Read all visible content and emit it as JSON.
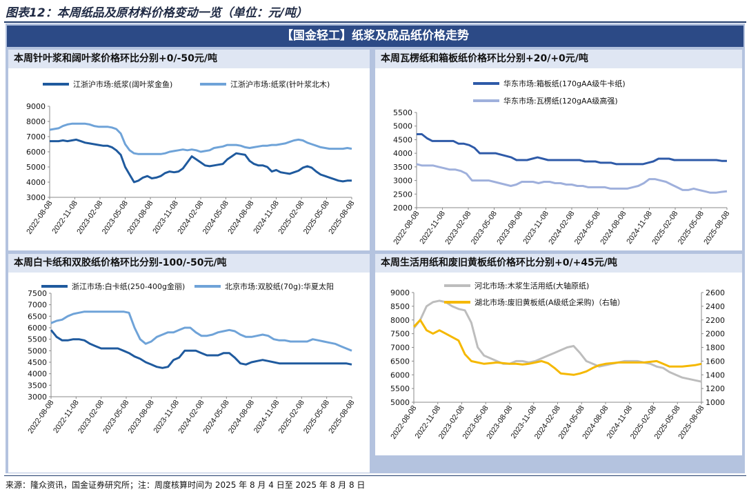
{
  "figure_title": "图表12：本周纸品及原材料价格变动一览（单位：元/吨）",
  "banner": "【国金轻工】纸浆及成品纸价格走势",
  "source_note": "来源：隆众资讯，国金证券研究所；注：周度核算时间为 2025 年 8 月 4 日至 2025 年 8 月 8 日",
  "chart_data": [
    {
      "id": "p1",
      "type": "line",
      "title": "本周针叶浆和阔叶浆价格环比分别+0/-50元/吨",
      "x_tick_labels": [
        "2022-08-08",
        "2022-11-08",
        "2023-02-08",
        "2023-05-08",
        "2023-08-08",
        "2023-11-08",
        "2024-02-08",
        "2024-05-08",
        "2024-08-08",
        "2024-11-08",
        "2025-02-08",
        "2025-05-08",
        "2025-08-08"
      ],
      "ylim": [
        3000,
        9000
      ],
      "yticks": [
        3000,
        4000,
        5000,
        6000,
        7000,
        8000,
        9000
      ],
      "series": [
        {
          "name": "江浙沪市场:纸浆(阔叶浆金鱼)",
          "color": "#1f5a9e",
          "width": 3,
          "values": [
            6700,
            6700,
            6700,
            6750,
            6700,
            6750,
            6800,
            6700,
            6600,
            6550,
            6500,
            6450,
            6400,
            6400,
            6300,
            6100,
            5800,
            5000,
            4500,
            4000,
            4100,
            4300,
            4400,
            4250,
            4300,
            4400,
            4600,
            4700,
            4650,
            4700,
            4900,
            5300,
            5700,
            5500,
            5300,
            5100,
            5050,
            5100,
            5150,
            5200,
            5500,
            5700,
            5900,
            5850,
            5800,
            5400,
            5200,
            5100,
            5100,
            5000,
            4700,
            4800,
            4650,
            4600,
            4550,
            4650,
            4750,
            4950,
            5050,
            4950,
            4700,
            4500,
            4400,
            4300,
            4200,
            4100,
            4050,
            4100,
            4100
          ]
        },
        {
          "name": "江浙沪市场:纸浆(针叶浆北木)",
          "color": "#6fa3d8",
          "width": 3,
          "values": [
            7450,
            7500,
            7550,
            7700,
            7800,
            7850,
            7850,
            7850,
            7850,
            7800,
            7700,
            7650,
            7650,
            7650,
            7600,
            7500,
            7200,
            6500,
            6100,
            5900,
            5850,
            5850,
            5850,
            5850,
            5850,
            5850,
            5900,
            6000,
            6050,
            6100,
            6150,
            6100,
            6150,
            6100,
            6000,
            6050,
            6100,
            6250,
            6300,
            6350,
            6450,
            6450,
            6450,
            6400,
            6300,
            6250,
            6300,
            6350,
            6400,
            6400,
            6450,
            6450,
            6500,
            6550,
            6650,
            6750,
            6800,
            6750,
            6600,
            6500,
            6400,
            6300,
            6250,
            6200,
            6200,
            6200,
            6200,
            6250,
            6200
          ]
        }
      ]
    },
    {
      "id": "p2",
      "type": "line",
      "title": "本周瓦楞纸和箱板纸价格环比分别+20/+0元/吨",
      "x_tick_labels": [
        "2022-08-08",
        "2022-11-08",
        "2023-02-08",
        "2023-05-08",
        "2023-08-08",
        "2023-11-08",
        "2024-02-08",
        "2024-05-08",
        "2024-08-08",
        "2024-11-08",
        "2025-02-08",
        "2025-05-08",
        "2025-08-08"
      ],
      "ylim": [
        2000,
        5500
      ],
      "yticks": [
        2000,
        2500,
        3000,
        3500,
        4000,
        4500,
        5000,
        5500
      ],
      "series": [
        {
          "name": "华东市场:箱板纸(170gAA级牛卡纸)",
          "color": "#2e5aa8",
          "width": 3,
          "values": [
            4700,
            4700,
            4550,
            4450,
            4450,
            4450,
            4450,
            4450,
            4350,
            4350,
            4300,
            4200,
            4000,
            4000,
            4000,
            4000,
            3950,
            3900,
            3850,
            3750,
            3750,
            3750,
            3800,
            3850,
            3800,
            3750,
            3750,
            3750,
            3750,
            3750,
            3750,
            3750,
            3700,
            3700,
            3700,
            3650,
            3650,
            3650,
            3600,
            3600,
            3600,
            3600,
            3600,
            3600,
            3650,
            3700,
            3800,
            3800,
            3800,
            3750,
            3750,
            3750,
            3750,
            3750,
            3750,
            3750,
            3750,
            3750,
            3720,
            3720
          ]
        },
        {
          "name": "华东市场:瓦楞纸(120gAA级高强)",
          "color": "#9fb0dc",
          "width": 3,
          "values": [
            3600,
            3550,
            3550,
            3550,
            3500,
            3450,
            3400,
            3400,
            3350,
            3250,
            3000,
            3000,
            3000,
            3000,
            2950,
            2900,
            2850,
            2800,
            2850,
            2950,
            2950,
            2950,
            2900,
            2950,
            2950,
            2900,
            2900,
            2850,
            2850,
            2800,
            2800,
            2750,
            2750,
            2750,
            2750,
            2700,
            2700,
            2700,
            2700,
            2750,
            2800,
            2900,
            3050,
            3050,
            3000,
            2950,
            2850,
            2750,
            2650,
            2650,
            2700,
            2650,
            2600,
            2550,
            2550,
            2580,
            2600
          ]
        }
      ]
    },
    {
      "id": "p3",
      "type": "line",
      "title": "本周白卡纸和双胶纸价格环比分别-100/-50元/吨",
      "x_tick_labels": [
        "2022-08-08",
        "2022-11-08",
        "2023-02-08",
        "2023-05-08",
        "2023-08-08",
        "2023-11-08",
        "2024-02-08",
        "2024-05-08",
        "2024-08-08",
        "2024-11-08",
        "2025-02-08",
        "2025-05-08",
        "2025-08-08"
      ],
      "ylim": [
        3000,
        7500
      ],
      "yticks": [
        3000,
        3500,
        4000,
        4500,
        5000,
        5500,
        6000,
        6500,
        7000,
        7500
      ],
      "series": [
        {
          "name": "浙江市场:白卡纸(250-400g金丽)",
          "color": "#1f5a9e",
          "width": 3,
          "values": [
            5900,
            5600,
            5450,
            5450,
            5500,
            5500,
            5450,
            5300,
            5200,
            5100,
            5100,
            5100,
            5100,
            5000,
            4900,
            4750,
            4650,
            4500,
            4400,
            4300,
            4250,
            4300,
            4600,
            4700,
            5000,
            5000,
            5000,
            4900,
            4800,
            4800,
            4800,
            4900,
            4900,
            4700,
            4450,
            4400,
            4500,
            4550,
            4600,
            4550,
            4500,
            4450,
            4450,
            4450,
            4450,
            4450,
            4450,
            4450,
            4450,
            4450,
            4450,
            4450,
            4450,
            4450,
            4400
          ]
        },
        {
          "name": "北京市场:双胶纸(70g):华夏太阳",
          "color": "#6fa3d8",
          "width": 3,
          "values": [
            6200,
            6300,
            6350,
            6500,
            6600,
            6650,
            6700,
            6700,
            6700,
            6700,
            6700,
            6700,
            6700,
            6700,
            6650,
            6000,
            5500,
            5300,
            5400,
            5600,
            5700,
            5800,
            5800,
            5900,
            6000,
            6000,
            5800,
            5650,
            5650,
            5700,
            5800,
            5850,
            5900,
            5850,
            5700,
            5600,
            5600,
            5650,
            5700,
            5650,
            5500,
            5450,
            5450,
            5400,
            5400,
            5400,
            5400,
            5500,
            5450,
            5400,
            5350,
            5300,
            5200,
            5100,
            5000
          ]
        }
      ]
    },
    {
      "id": "p4",
      "type": "line",
      "title": "本周生活用纸和废旧黄板纸价格环比分别+0/+45元/吨",
      "x_tick_labels": [
        "2022-08-08",
        "2022-11-08",
        "2023-02-08",
        "2023-05-08",
        "2023-08-08",
        "2023-11-08",
        "2024-02-08",
        "2024-05-08",
        "2024-08-08",
        "2024-11-08",
        "2025-02-08",
        "2025-05-08",
        "2025-08-08"
      ],
      "ylim": [
        5000,
        9000
      ],
      "yticks": [
        5000,
        5500,
        6000,
        6500,
        7000,
        7500,
        8000,
        8500,
        9000
      ],
      "y2lim": [
        1000,
        2600
      ],
      "y2ticks": [
        1000,
        1200,
        1400,
        1600,
        1800,
        2000,
        2200,
        2400,
        2600
      ],
      "series": [
        {
          "name": "河北市场:木浆生活用纸(大轴原纸)",
          "color": "#bdbdbd",
          "width": 3,
          "axis": "left",
          "values": [
            7700,
            8000,
            8500,
            8650,
            8700,
            8650,
            8500,
            8400,
            8350,
            7900,
            7000,
            6700,
            6600,
            6500,
            6400,
            6400,
            6500,
            6500,
            6450,
            6500,
            6600,
            6700,
            6800,
            6900,
            7000,
            7050,
            6800,
            6500,
            6400,
            6300,
            6350,
            6400,
            6450,
            6500,
            6500,
            6500,
            6450,
            6400,
            6300,
            6250,
            6100,
            6000,
            5900,
            5850,
            5800,
            5750
          ]
        },
        {
          "name": "湖北市场:废旧黄板纸(A级纸企采购)（右轴）",
          "color": "#f5b800",
          "width": 3,
          "axis": "right",
          "values": [
            2100,
            2200,
            2050,
            2000,
            2050,
            2000,
            1950,
            1900,
            1700,
            1600,
            1580,
            1560,
            1570,
            1580,
            1570,
            1560,
            1560,
            1550,
            1560,
            1580,
            1600,
            1570,
            1500,
            1420,
            1410,
            1400,
            1420,
            1450,
            1500,
            1540,
            1560,
            1570,
            1580,
            1580,
            1580,
            1580,
            1580,
            1590,
            1600,
            1560,
            1520,
            1520,
            1520,
            1530,
            1540,
            1560
          ]
        }
      ]
    }
  ]
}
